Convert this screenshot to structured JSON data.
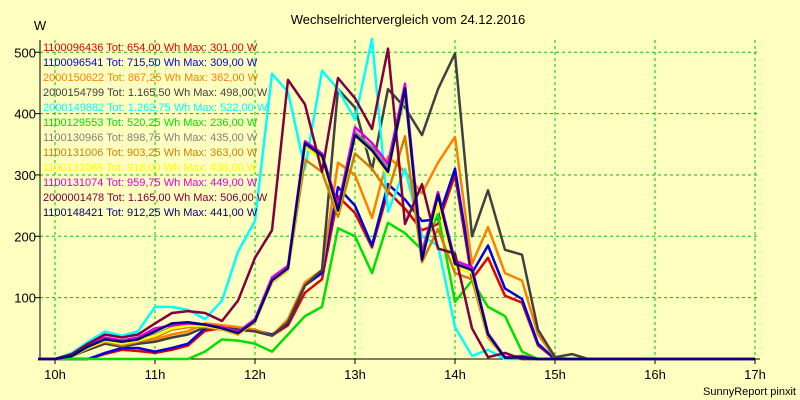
{
  "chart_data": {
    "type": "line",
    "title": "Wechselrichtervergleich vom 24.12.2016",
    "ylabel": "W",
    "xlabel": "",
    "footer": "SunnyReport pinxit",
    "background": "#ffffc0",
    "grid": true,
    "grid_color": "#00c000",
    "legend_position": "top-left",
    "xlim": [
      9.85,
      17.05
    ],
    "ylim": [
      0,
      520
    ],
    "x_ticks": [
      {
        "v": 10,
        "label": "10h"
      },
      {
        "v": 11,
        "label": "11h"
      },
      {
        "v": 12,
        "label": "12h"
      },
      {
        "v": 13,
        "label": "13h"
      },
      {
        "v": 14,
        "label": "14h"
      },
      {
        "v": 15,
        "label": "15h"
      },
      {
        "v": 16,
        "label": "16h"
      },
      {
        "v": 17,
        "label": "17h"
      }
    ],
    "y_ticks": [
      {
        "v": 100,
        "label": "100"
      },
      {
        "v": 200,
        "label": "200"
      },
      {
        "v": 300,
        "label": "300"
      },
      {
        "v": 400,
        "label": "400"
      },
      {
        "v": 500,
        "label": "500"
      }
    ],
    "x": [
      9.83,
      10.0,
      10.17,
      10.33,
      10.5,
      10.67,
      10.83,
      11.0,
      11.17,
      11.33,
      11.5,
      11.67,
      11.83,
      12.0,
      12.17,
      12.33,
      12.5,
      12.67,
      12.83,
      13.0,
      13.17,
      13.33,
      13.5,
      13.67,
      13.83,
      14.0,
      14.17,
      14.33,
      14.5,
      14.67,
      14.83,
      15.0,
      15.17,
      15.33,
      15.5,
      15.67,
      15.83,
      16.0,
      16.17,
      16.33,
      16.5,
      16.67,
      16.83,
      17.0
    ],
    "series": [
      {
        "name": "1100096436 Tot: 654,00 Wh Max: 301,00 W",
        "color": "#e00000",
        "values": [
          0,
          0,
          0,
          0,
          8,
          15,
          13,
          10,
          15,
          22,
          46,
          50,
          48,
          45,
          38,
          55,
          108,
          130,
          265,
          238,
          182,
          273,
          245,
          210,
          220,
          300,
          130,
          165,
          103,
          92,
          22,
          0,
          0,
          0,
          0,
          0,
          0,
          0,
          0,
          0,
          0,
          0,
          0,
          0
        ]
      },
      {
        "name": "1100096541 Tot: 715,50 Wh Max: 309,00 W",
        "color": "#0000e0",
        "values": [
          0,
          0,
          0,
          0,
          10,
          18,
          18,
          12,
          18,
          25,
          50,
          52,
          50,
          47,
          40,
          58,
          120,
          140,
          280,
          250,
          185,
          285,
          260,
          225,
          228,
          310,
          140,
          185,
          115,
          98,
          25,
          0,
          0,
          0,
          0,
          0,
          0,
          0,
          0,
          0,
          0,
          0,
          0,
          0
        ]
      },
      {
        "name": "2000150622 Tot: 867,25 Wh Max: 362,00 W",
        "color": "#ff8000",
        "values": [
          0,
          0,
          8,
          20,
          30,
          25,
          30,
          32,
          40,
          45,
          58,
          55,
          52,
          48,
          38,
          65,
          125,
          145,
          320,
          300,
          230,
          330,
          305,
          270,
          320,
          362,
          155,
          215,
          140,
          128,
          40,
          2,
          0,
          0,
          0,
          0,
          0,
          0,
          0,
          0,
          0,
          0,
          0,
          0
        ]
      },
      {
        "name": "2000154799 Tot: 1.165,50 Wh Max: 498,00 W",
        "color": "#404040",
        "values": [
          0,
          0,
          5,
          15,
          25,
          20,
          25,
          28,
          35,
          40,
          52,
          50,
          48,
          45,
          38,
          60,
          120,
          145,
          440,
          410,
          308,
          440,
          410,
          365,
          440,
          498,
          200,
          275,
          178,
          170,
          48,
          3,
          8,
          0,
          0,
          0,
          0,
          0,
          0,
          0,
          0,
          0,
          0,
          0
        ]
      },
      {
        "name": "2000149882 Tot: 1.262,75 Wh Max: 522,00 W",
        "color": "#00ffff",
        "values": [
          0,
          0,
          10,
          28,
          45,
          38,
          45,
          85,
          85,
          80,
          65,
          95,
          175,
          225,
          465,
          435,
          310,
          470,
          440,
          390,
          522,
          240,
          310,
          200,
          185,
          52,
          5,
          15,
          0,
          0,
          0,
          0,
          0,
          0,
          0,
          0,
          0,
          0,
          0,
          0,
          0,
          0,
          0,
          0
        ]
      },
      {
        "name": "1100129553 Tot: 520,25 Wh Max: 236,00 W",
        "color": "#00e000",
        "values": [
          0,
          0,
          0,
          0,
          0,
          0,
          0,
          0,
          0,
          0,
          12,
          32,
          30,
          25,
          12,
          40,
          70,
          85,
          213,
          200,
          140,
          222,
          205,
          178,
          236,
          93,
          128,
          85,
          70,
          12,
          0,
          0,
          0,
          0,
          0,
          0,
          0,
          0,
          0,
          0,
          0,
          0,
          0,
          0
        ]
      },
      {
        "name": "1100130966 Tot: 898,75 Wh Max: 435,00 W",
        "color": "#808080",
        "values": [
          0,
          0,
          5,
          20,
          32,
          28,
          32,
          40,
          52,
          55,
          55,
          50,
          42,
          62,
          128,
          148,
          350,
          330,
          245,
          370,
          345,
          310,
          430,
          175,
          265,
          155,
          148,
          40,
          2,
          5,
          0,
          0,
          0,
          0,
          0,
          0,
          0,
          0,
          0,
          0,
          0,
          0,
          0,
          0
        ]
      },
      {
        "name": "1100131006 Tot: 903,25 Wh Max: 363,00 W",
        "color": "#d08000",
        "values": [
          0,
          0,
          5,
          18,
          28,
          22,
          28,
          35,
          48,
          52,
          52,
          48,
          40,
          60,
          125,
          145,
          325,
          305,
          232,
          335,
          310,
          272,
          363,
          158,
          212,
          140,
          130,
          35,
          2,
          0,
          0,
          0,
          0,
          0,
          0,
          0,
          0,
          0,
          0,
          0,
          0,
          0,
          0,
          0
        ]
      },
      {
        "name": "1100131068 Tot: 918,00 Wh Max: 438,00 W",
        "color": "#ffff00",
        "values": [
          0,
          0,
          5,
          18,
          30,
          25,
          30,
          38,
          50,
          54,
          54,
          49,
          41,
          61,
          126,
          146,
          345,
          325,
          240,
          362,
          338,
          300,
          438,
          165,
          255,
          150,
          140,
          38,
          2,
          3,
          0,
          0,
          0,
          0,
          0,
          0,
          0,
          0,
          0,
          0,
          0,
          0,
          0,
          0
        ]
      },
      {
        "name": "1100131074 Tot: 959,75 Wh Max: 449,00 W",
        "color": "#e000e0",
        "values": [
          0,
          0,
          5,
          22,
          35,
          30,
          35,
          50,
          55,
          58,
          56,
          52,
          44,
          65,
          133,
          152,
          355,
          335,
          248,
          378,
          352,
          318,
          449,
          170,
          272,
          160,
          150,
          42,
          3,
          5,
          0,
          0,
          0,
          0,
          0,
          0,
          0,
          0,
          0,
          0,
          0,
          0,
          0,
          0
        ]
      },
      {
        "name": "2000001478 Tot: 1.165,00 Wh Max: 506,00 W",
        "color": "#800040",
        "values": [
          0,
          0,
          8,
          25,
          40,
          35,
          40,
          58,
          75,
          78,
          75,
          62,
          95,
          165,
          210,
          455,
          415,
          305,
          458,
          425,
          375,
          506,
          220,
          285,
          180,
          172,
          50,
          3,
          10,
          0,
          0,
          0,
          0,
          0,
          0,
          0,
          0,
          0,
          0,
          0,
          0,
          0,
          0,
          0
        ]
      },
      {
        "name": "1100148421 Tot: 912,25 Wh Max: 441,00 W",
        "color": "#000080",
        "values": [
          0,
          0,
          5,
          20,
          32,
          28,
          32,
          45,
          58,
          60,
          56,
          50,
          42,
          62,
          128,
          148,
          352,
          332,
          242,
          365,
          340,
          305,
          441,
          162,
          268,
          155,
          145,
          40,
          2,
          3,
          0,
          0,
          0,
          0,
          0,
          0,
          0,
          0,
          0,
          0,
          0,
          0,
          0,
          0
        ]
      }
    ]
  }
}
